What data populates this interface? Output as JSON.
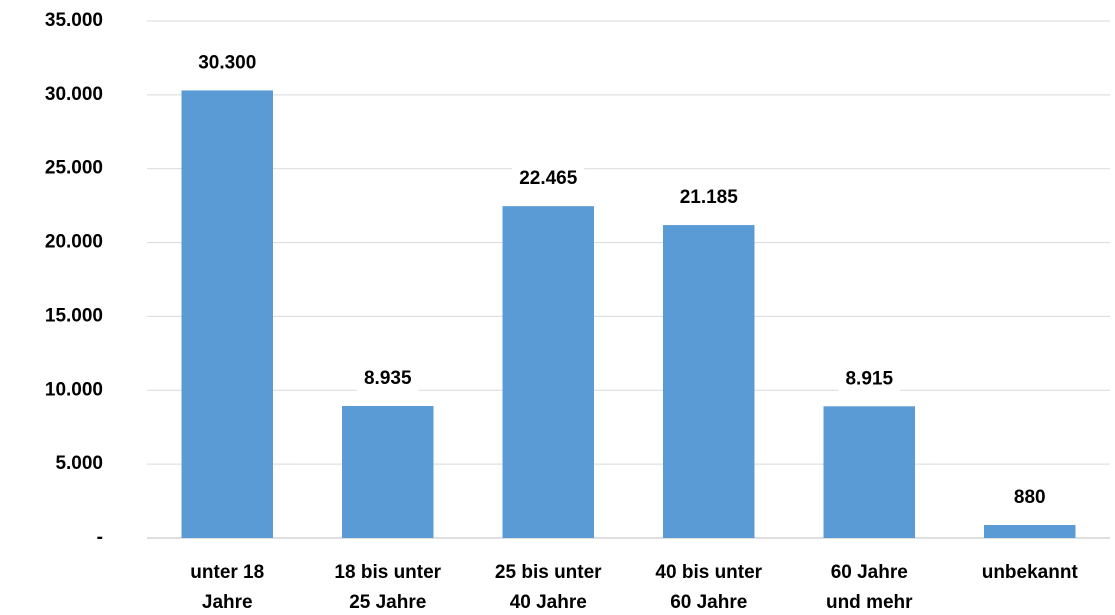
{
  "chart_data": {
    "type": "bar",
    "categories": [
      [
        "unter 18",
        "Jahre"
      ],
      [
        "18 bis unter",
        "25 Jahre"
      ],
      [
        "25 bis unter",
        "40 Jahre"
      ],
      [
        "40 bis unter",
        "60 Jahre"
      ],
      [
        "60 Jahre",
        "und mehr"
      ],
      [
        "unbekannt"
      ]
    ],
    "values": [
      30300,
      8935,
      22465,
      21185,
      8915,
      880
    ],
    "value_labels": [
      "30.300",
      "8.935",
      "22.465",
      "21.185",
      "8.915",
      "880"
    ],
    "color": "#5b9bd5",
    "ylim": [
      0,
      35000
    ],
    "yticks": [
      {
        "value": 0,
        "label": "-"
      },
      {
        "value": 5000,
        "label": "5.000"
      },
      {
        "value": 10000,
        "label": "10.000"
      },
      {
        "value": 15000,
        "label": "15.000"
      },
      {
        "value": 20000,
        "label": "20.000"
      },
      {
        "value": 25000,
        "label": "25.000"
      },
      {
        "value": 30000,
        "label": "30.000"
      },
      {
        "value": 35000,
        "label": "35.000"
      }
    ],
    "grid": true
  }
}
